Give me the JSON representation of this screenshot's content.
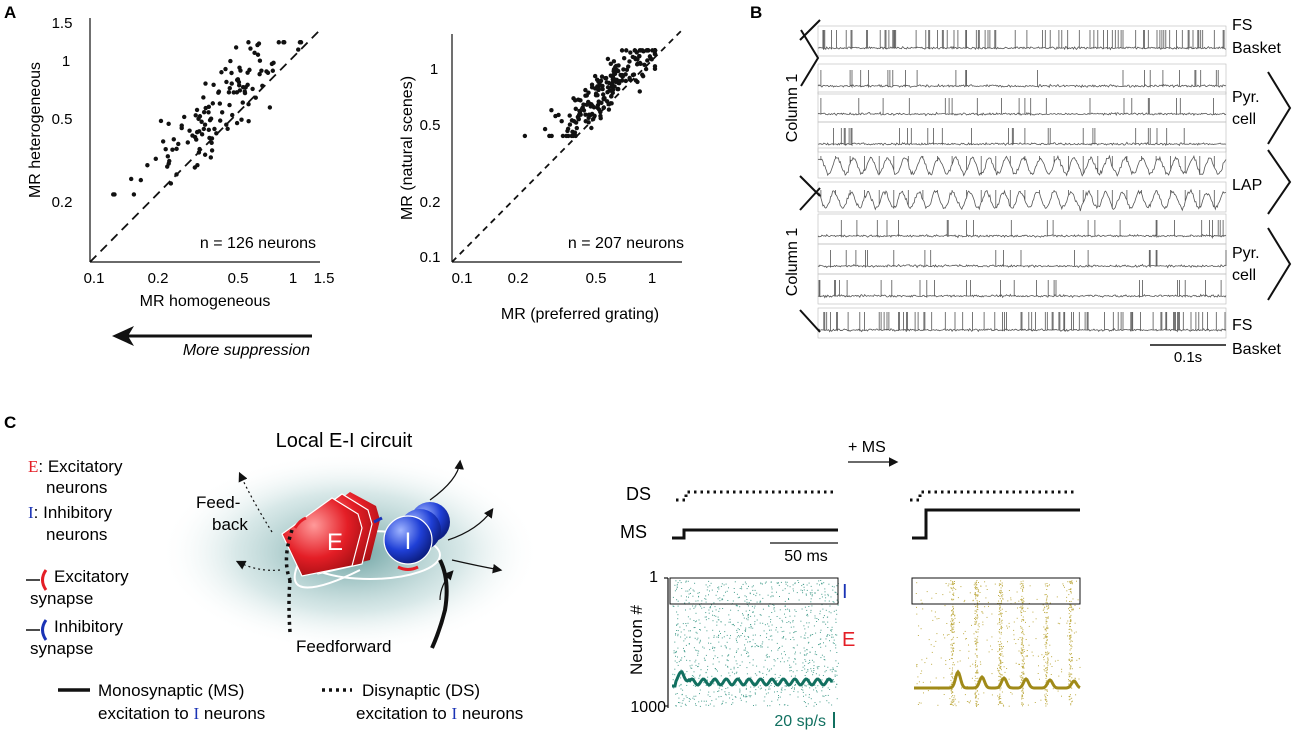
{
  "panel_labels": {
    "a": "A",
    "b": "B",
    "c": "C"
  },
  "colors": {
    "black": "#111111",
    "red": "#e41e26",
    "blue": "#1a33b5",
    "teal": "#117060",
    "olive": "#a08a18",
    "glow": "#5a9a9a",
    "trace": "#666666"
  },
  "panelA": {
    "arrow_label": "More suppression",
    "left": {
      "xlabel": "MR homogeneous",
      "ylabel": "MR heterogeneous",
      "n_label": "n = 126 neurons",
      "x_ticks": [
        "0.1",
        "0.2",
        "0.5",
        "1",
        "1.5"
      ],
      "y_ticks": [
        "0.2",
        "0.5",
        "1",
        "1.5"
      ]
    },
    "right": {
      "xlabel": "MR (preferred grating)",
      "ylabel": "MR (natural scenes)",
      "n_label": "n = 207 neurons",
      "x_ticks": [
        "0.1",
        "0.2",
        "0.5",
        "1"
      ],
      "y_ticks": [
        "0.1",
        "0.2",
        "0.5",
        "1"
      ]
    }
  },
  "chart_data": [
    {
      "type": "scatter",
      "title": "",
      "xlabel": "MR homogeneous",
      "ylabel": "MR heterogeneous",
      "x_scale": "log",
      "y_scale": "log",
      "xlim": [
        0.1,
        1.5
      ],
      "ylim": [
        0.1,
        1.5
      ],
      "n": 126,
      "reference_line": "unity (dashed)",
      "points_described": "126 neurons clustered mostly above the unity line, x mainly 0.15-1.1, y mainly 0.25-1.3"
    },
    {
      "type": "scatter",
      "title": "",
      "xlabel": "MR (preferred grating)",
      "ylabel": "MR (natural scenes)",
      "x_scale": "log",
      "y_scale": "log",
      "xlim": [
        0.09,
        1.3
      ],
      "ylim": [
        0.09,
        1.4
      ],
      "n": 207,
      "reference_line": "unity (dashed)",
      "points_described": "207 neurons, dense cluster around x 0.4-0.9, y 0.5-1.0, above the unity line"
    }
  ],
  "panelB": {
    "column_label_top": "Column 1",
    "column_label_bottom": "Column 1",
    "labels": {
      "fs_top": "FS",
      "basket_top": "Basket",
      "pyr1": "Pyr.",
      "cell1": "cell",
      "lap": "LAP",
      "pyr2": "Pyr.",
      "cell2": "cell",
      "fs_bottom": "FS",
      "basket_bottom": "Basket"
    },
    "scale_label": "0.1s"
  },
  "panelC": {
    "title": "Local E-I circuit",
    "legend": {
      "e_letter": "E",
      "e_text_1": ": Excitatory",
      "e_text_2": "neurons",
      "i_letter": "I",
      "i_text_1": ": Inhibitory",
      "i_text_2": "neurons",
      "exc_syn_1": "Excitatory",
      "exc_syn_2": "synapse",
      "inh_syn_1": "Inhibitory",
      "inh_syn_2": "synapse",
      "ms_1": "Monosynaptic (MS)",
      "ms_2": "excitation to",
      "ds_1": "Disynaptic (DS)",
      "ds_2": "excitation to",
      "i_neurons": "neurons"
    },
    "circuit": {
      "feedback_1": "Feed-",
      "feedback_2": "back",
      "feedforward": "Feedforward",
      "e_label": "E",
      "i_label": "I"
    },
    "sim": {
      "plus_ms": "+ MS",
      "ds": "DS",
      "ms": "MS",
      "time_scale": "50 ms",
      "neuron_axis": "Neuron #",
      "tick_top": "1",
      "tick_bottom": "1000",
      "i_label": "I",
      "e_label": "E",
      "rate_scale": "20 sp/s"
    }
  }
}
